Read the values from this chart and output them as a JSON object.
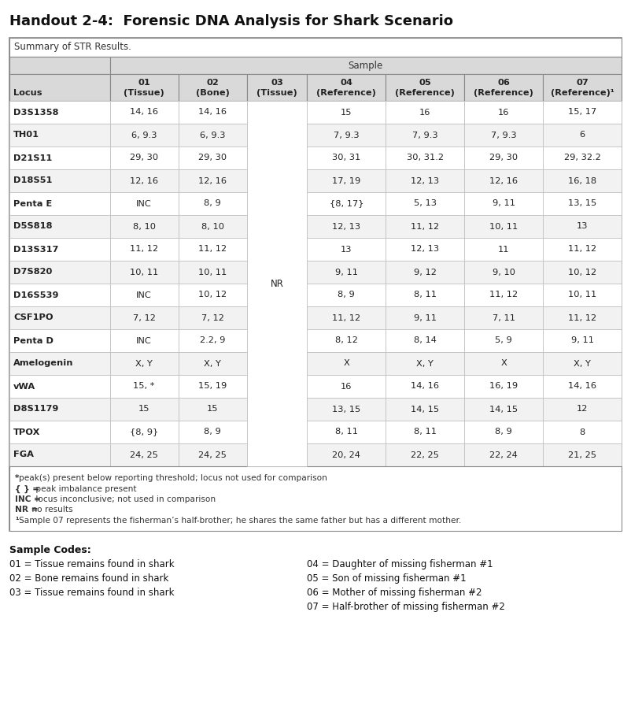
{
  "title": "Handout 2-4:  Forensic DNA Analysis for Shark Scenario",
  "table_title": "Summary of STR Results.",
  "sample_header": "Sample",
  "col_headers": [
    [
      "",
      ""
    ],
    [
      "01",
      "(Tissue)"
    ],
    [
      "02",
      "(Bone)"
    ],
    [
      "03",
      "(Tissue)"
    ],
    [
      "04",
      "(Reference)"
    ],
    [
      "05",
      "(Reference)"
    ],
    [
      "06",
      "(Reference)"
    ],
    [
      "07",
      "(Reference)¹"
    ]
  ],
  "loci": [
    "D3S1358",
    "TH01",
    "D21S11",
    "D18S51",
    "Penta E",
    "D5S818",
    "D13S317",
    "D7S820",
    "D16S539",
    "CSF1PO",
    "Penta D",
    "Amelogenin",
    "vWA",
    "D8S1179",
    "TPOX",
    "FGA"
  ],
  "data": [
    [
      "14, 16",
      "14, 16",
      "",
      "15",
      "16",
      "16",
      "15, 17"
    ],
    [
      "6, 9.3",
      "6, 9.3",
      "",
      "7, 9.3",
      "7, 9.3",
      "7, 9.3",
      "6"
    ],
    [
      "29, 30",
      "29, 30",
      "",
      "30, 31",
      "30, 31.2",
      "29, 30",
      "29, 32.2"
    ],
    [
      "12, 16",
      "12, 16",
      "",
      "17, 19",
      "12, 13",
      "12, 16",
      "16, 18"
    ],
    [
      "INC",
      "8, 9",
      "",
      "{8, 17}",
      "5, 13",
      "9, 11",
      "13, 15"
    ],
    [
      "8, 10",
      "8, 10",
      "",
      "12, 13",
      "11, 12",
      "10, 11",
      "13"
    ],
    [
      "11, 12",
      "11, 12",
      "",
      "13",
      "12, 13",
      "11",
      "11, 12"
    ],
    [
      "10, 11",
      "10, 11",
      "",
      "9, 11",
      "9, 12",
      "9, 10",
      "10, 12"
    ],
    [
      "INC",
      "10, 12",
      "",
      "8, 9",
      "8, 11",
      "11, 12",
      "10, 11"
    ],
    [
      "7, 12",
      "7, 12",
      "",
      "11, 12",
      "9, 11",
      "7, 11",
      "11, 12"
    ],
    [
      "INC",
      "2.2, 9",
      "",
      "8, 12",
      "8, 14",
      "5, 9",
      "9, 11"
    ],
    [
      "X, Y",
      "X, Y",
      "",
      "X",
      "X, Y",
      "X",
      "X, Y"
    ],
    [
      "15, *",
      "15, 19",
      "",
      "16",
      "14, 16",
      "16, 19",
      "14, 16"
    ],
    [
      "15",
      "15",
      "",
      "13, 15",
      "14, 15",
      "14, 15",
      "12"
    ],
    [
      "{8, 9}",
      "8, 9",
      "",
      "8, 11",
      "8, 11",
      "8, 9",
      "8"
    ],
    [
      "24, 25",
      "24, 25",
      "",
      "20, 24",
      "22, 25",
      "22, 24",
      "21, 25"
    ]
  ],
  "footnotes": [
    [
      "*",
      "peak(s) present below reporting threshold; locus not used for comparison"
    ],
    [
      "{ } =",
      " peak imbalance present"
    ],
    [
      "INC =",
      " locus inconclusive; not used in comparison"
    ],
    [
      "NR =",
      " no results"
    ],
    [
      "¹",
      "Sample 07 represents the fisherman’s half-brother; he shares the same father but has a different mother."
    ]
  ],
  "sample_codes_title": "Sample Codes:",
  "sample_codes_left": [
    "01 = Tissue remains found in shark",
    "02 = Bone remains found in shark",
    "03 = Tissue remains found in shark"
  ],
  "sample_codes_right": [
    "04 = Daughter of missing fisherman #1",
    "05 = Son of missing fisherman #1",
    "06 = Mother of missing fisherman #2",
    "07 = Half-brother of missing fisherman #2"
  ],
  "header_bg": "#d9d9d9",
  "alt_row_bg": "#f2f2f2",
  "white_row_bg": "#ffffff",
  "outer_border": "#888888",
  "inner_border": "#bbbbbb",
  "text_color": "#222222"
}
